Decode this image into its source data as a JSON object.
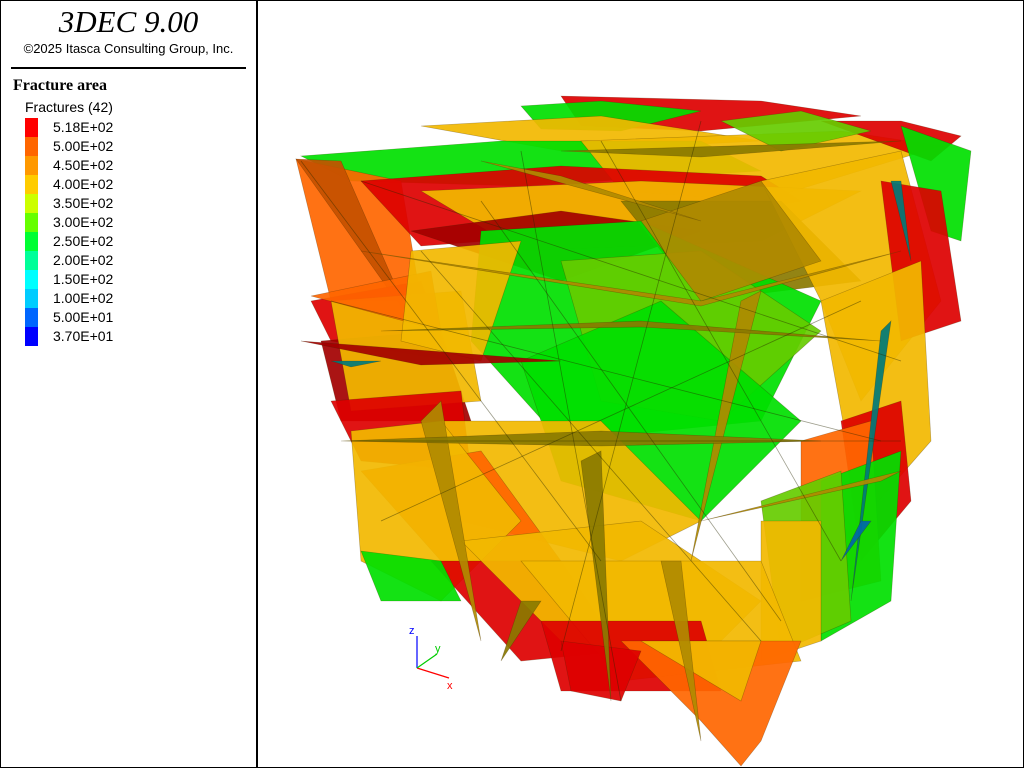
{
  "app": {
    "title": "3DEC 9.00",
    "copyright": "©2025 Itasca Consulting Group, Inc."
  },
  "legend": {
    "plot_title": "Fracture area",
    "item_label": "Fractures (42)",
    "scale": [
      {
        "value": "5.18E+02",
        "color": "#ff0000"
      },
      {
        "value": "5.00E+02",
        "color": "#ff6600"
      },
      {
        "value": "4.50E+02",
        "color": "#ff9900"
      },
      {
        "value": "4.00E+02",
        "color": "#ffcc00"
      },
      {
        "value": "3.50E+02",
        "color": "#ccff00"
      },
      {
        "value": "3.00E+02",
        "color": "#66ff00"
      },
      {
        "value": "2.50E+02",
        "color": "#00ff33"
      },
      {
        "value": "2.00E+02",
        "color": "#00ff99"
      },
      {
        "value": "1.50E+02",
        "color": "#00ffff"
      },
      {
        "value": "1.00E+02",
        "color": "#00ccff"
      },
      {
        "value": "5.00E+01",
        "color": "#0066ff"
      },
      {
        "value": "3.70E+01",
        "color": "#0000ff"
      }
    ]
  },
  "triad": {
    "x_label": "x",
    "y_label": "y",
    "z_label": "z",
    "x_color": "#ff0000",
    "y_color": "#00cc00",
    "z_color": "#0000ff"
  },
  "palette": {
    "red": "#dd0000",
    "dark_red": "#a30000",
    "orange": "#ff6600",
    "dark_orange": "#c45000",
    "gold": "#f2b800",
    "dark_gold": "#b08a00",
    "olive": "#8a7a00",
    "green": "#00e000",
    "lime": "#66cc00",
    "teal": "#007a7a",
    "blue_fracture": "#0066aa"
  }
}
